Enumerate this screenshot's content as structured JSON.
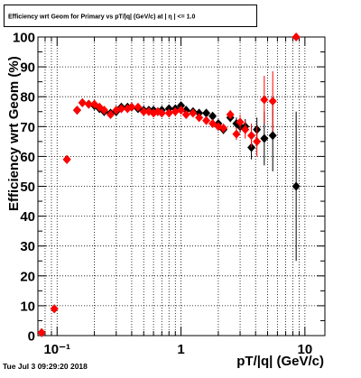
{
  "chart_data": {
    "type": "scatter",
    "title": "Efficiency wrt Geom for Primary vs pT/|q| (GeV/c) at | η | <= 1.0",
    "x_label": "pT/|q| (GeV/c)",
    "y_label": "Efficiency wrt Geom (%)",
    "footer": "Tue Jul  3 09:29:20 2018",
    "x_scale": "log",
    "grid": true,
    "xlim": [
      0.07,
      14.5
    ],
    "ylim": [
      0,
      100
    ],
    "yticks": [
      0,
      10,
      20,
      30,
      40,
      50,
      60,
      70,
      80,
      90,
      100
    ],
    "xticks": [
      {
        "value": 0.1,
        "label": "10⁻¹"
      },
      1,
      10
    ],
    "xticks_minor": [
      0.08,
      0.09,
      0.2,
      0.3,
      0.4,
      0.5,
      0.6,
      0.7,
      0.8,
      0.9,
      2,
      3,
      4,
      5,
      6,
      7,
      8,
      9
    ],
    "x": [
      0.075,
      0.095,
      0.12,
      0.145,
      0.16,
      0.18,
      0.2,
      0.22,
      0.24,
      0.27,
      0.3,
      0.33,
      0.37,
      0.4,
      0.45,
      0.5,
      0.55,
      0.6,
      0.65,
      0.7,
      0.8,
      0.9,
      1.0,
      1.1,
      1.25,
      1.4,
      1.6,
      1.8,
      2.0,
      2.2,
      2.5,
      2.8,
      3.0,
      3.3,
      3.7,
      4.1,
      4.7,
      5.5,
      8.5
    ],
    "series": [
      {
        "color": "#000000",
        "values": [
          1,
          9,
          59,
          75.5,
          78,
          77.5,
          77,
          76,
          75,
          74.5,
          75,
          76.5,
          76.5,
          76.5,
          76,
          75.5,
          75.5,
          75.5,
          75,
          75.5,
          76,
          76,
          77,
          75.5,
          75,
          74.5,
          74.5,
          73.5,
          71,
          69,
          73,
          71,
          70,
          70,
          63,
          69,
          66,
          67,
          50
        ],
        "errors": [
          0.5,
          0.8,
          1,
          1,
          0.8,
          0.8,
          0.6,
          0.6,
          0.6,
          0.6,
          0.6,
          0.6,
          0.6,
          0.6,
          0.6,
          0.6,
          0.6,
          0.6,
          0.6,
          0.6,
          0.7,
          0.7,
          0.8,
          0.8,
          0.9,
          1,
          1,
          1.2,
          1.3,
          1.5,
          1.5,
          2,
          2,
          2.5,
          4,
          4,
          9,
          12,
          25
        ]
      },
      {
        "color": "#ff0000",
        "values": [
          1,
          9,
          59,
          75.5,
          78,
          77.5,
          77.5,
          76.5,
          75.5,
          74,
          75.5,
          76,
          76,
          76.5,
          76.5,
          75,
          75,
          74.5,
          75,
          74.5,
          74.5,
          75,
          75.5,
          74,
          74.5,
          73,
          72,
          71,
          70,
          69.5,
          74,
          67.5,
          71.5,
          69,
          67,
          65,
          79,
          78.5,
          100
        ],
        "errors": [
          0.5,
          0.8,
          1,
          1,
          0.8,
          0.8,
          0.6,
          0.6,
          0.6,
          0.6,
          0.6,
          0.6,
          0.6,
          0.6,
          0.6,
          0.6,
          0.6,
          0.6,
          0.6,
          0.6,
          0.7,
          0.7,
          0.8,
          0.8,
          0.9,
          1,
          1,
          1.2,
          1.3,
          1.5,
          1.5,
          2,
          2.5,
          3,
          4,
          5,
          8,
          10,
          0
        ]
      }
    ]
  }
}
